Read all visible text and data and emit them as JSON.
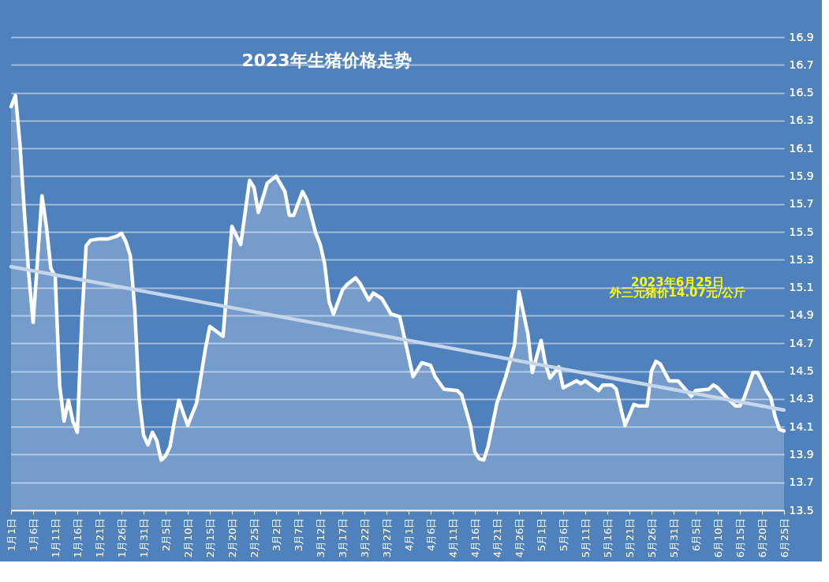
{
  "chart_data": {
    "type": "line",
    "title": "2023年生猪价格走势",
    "annotations": [
      "2023年6月25日",
      "外三元猪价14.07元/公斤"
    ],
    "xlim": [
      "2023-01-01",
      "2023-06-25"
    ],
    "xticks": [
      {
        "value": "2023-01-01",
        "label": "1月1日"
      },
      {
        "value": "2023-01-06",
        "label": "1月6日"
      },
      {
        "value": "2023-01-11",
        "label": "1月11日"
      },
      {
        "value": "2023-01-16",
        "label": "1月16日"
      },
      {
        "value": "2023-01-21",
        "label": "1月21日"
      },
      {
        "value": "2023-01-26",
        "label": "1月26日"
      },
      {
        "value": "2023-01-31",
        "label": "1月31日"
      },
      {
        "value": "2023-02-05",
        "label": "2月5日"
      },
      {
        "value": "2023-02-10",
        "label": "2月10日"
      },
      {
        "value": "2023-02-15",
        "label": "2月15日"
      },
      {
        "value": "2023-02-20",
        "label": "2月20日"
      },
      {
        "value": "2023-02-25",
        "label": "2月25日"
      },
      {
        "value": "2023-03-02",
        "label": "3月2日"
      },
      {
        "value": "2023-03-07",
        "label": "3月7日"
      },
      {
        "value": "2023-03-12",
        "label": "3月12日"
      },
      {
        "value": "2023-03-17",
        "label": "3月17日"
      },
      {
        "value": "2023-03-22",
        "label": "3月22日"
      },
      {
        "value": "2023-03-27",
        "label": "3月27日"
      },
      {
        "value": "2023-04-01",
        "label": "4月1日"
      },
      {
        "value": "2023-04-06",
        "label": "4月6日"
      },
      {
        "value": "2023-04-11",
        "label": "4月11日"
      },
      {
        "value": "2023-04-16",
        "label": "4月16日"
      },
      {
        "value": "2023-04-21",
        "label": "4月21日"
      },
      {
        "value": "2023-04-26",
        "label": "4月26日"
      },
      {
        "value": "2023-05-01",
        "label": "5月1日"
      },
      {
        "value": "2023-05-06",
        "label": "5月6日"
      },
      {
        "value": "2023-05-11",
        "label": "5月11日"
      },
      {
        "value": "2023-05-16",
        "label": "5月16日"
      },
      {
        "value": "2023-05-21",
        "label": "5月21日"
      },
      {
        "value": "2023-05-26",
        "label": "5月26日"
      },
      {
        "value": "2023-05-31",
        "label": "5月31日"
      },
      {
        "value": "2023-06-05",
        "label": "6月5日"
      },
      {
        "value": "2023-06-10",
        "label": "6月10日"
      },
      {
        "value": "2023-06-15",
        "label": "6月15日"
      },
      {
        "value": "2023-06-20",
        "label": "6月20日"
      },
      {
        "value": "2023-06-25",
        "label": "6月25日"
      }
    ],
    "ylim": [
      13.5,
      16.9
    ],
    "yticks": [
      13.5,
      13.7,
      13.9,
      14.1,
      14.3,
      14.5,
      14.7,
      14.9,
      15.1,
      15.3,
      15.5,
      15.7,
      15.9,
      16.1,
      16.3,
      16.5,
      16.7,
      16.9
    ],
    "grid": "y",
    "marker": "none",
    "line_style": "solid",
    "series": [
      {
        "type": "area",
        "color": "#ffffff",
        "x": [
          "2023-01-01",
          "2023-01-02",
          "2023-01-03",
          "2023-01-04",
          "2023-01-05",
          "2023-01-06",
          "2023-01-07",
          "2023-01-08",
          "2023-01-09",
          "2023-01-10",
          "2023-01-11",
          "2023-01-12",
          "2023-01-13",
          "2023-01-14",
          "2023-01-15",
          "2023-01-16",
          "2023-01-17",
          "2023-01-18",
          "2023-01-19",
          "2023-01-21",
          "2023-01-23",
          "2023-01-25",
          "2023-01-26",
          "2023-01-27",
          "2023-01-28",
          "2023-01-29",
          "2023-01-30",
          "2023-01-31",
          "2023-02-01",
          "2023-02-02",
          "2023-02-03",
          "2023-02-04",
          "2023-02-05",
          "2023-02-06",
          "2023-02-07",
          "2023-02-08",
          "2023-02-09",
          "2023-02-10",
          "2023-02-12",
          "2023-02-14",
          "2023-02-15",
          "2023-02-18",
          "2023-02-20",
          "2023-02-22",
          "2023-02-24",
          "2023-02-25",
          "2023-02-26",
          "2023-02-28",
          "2023-03-02",
          "2023-03-04",
          "2023-03-05",
          "2023-03-06",
          "2023-03-08",
          "2023-03-09",
          "2023-03-11",
          "2023-03-12",
          "2023-03-13",
          "2023-03-14",
          "2023-03-15",
          "2023-03-17",
          "2023-03-18",
          "2023-03-20",
          "2023-03-21",
          "2023-03-23",
          "2023-03-24",
          "2023-03-26",
          "2023-03-28",
          "2023-03-30",
          "2023-03-31",
          "2023-04-02",
          "2023-04-04",
          "2023-04-06",
          "2023-04-07",
          "2023-04-09",
          "2023-04-12",
          "2023-04-13",
          "2023-04-15",
          "2023-04-16",
          "2023-04-17",
          "2023-04-18",
          "2023-04-19",
          "2023-04-21",
          "2023-04-23",
          "2023-04-25",
          "2023-04-26",
          "2023-04-28",
          "2023-04-29",
          "2023-05-01",
          "2023-05-02",
          "2023-05-03",
          "2023-05-05",
          "2023-05-06",
          "2023-05-09",
          "2023-05-10",
          "2023-05-11",
          "2023-05-14",
          "2023-05-15",
          "2023-05-17",
          "2023-05-18",
          "2023-05-20",
          "2023-05-22",
          "2023-05-23",
          "2023-05-25",
          "2023-05-26",
          "2023-05-27",
          "2023-05-28",
          "2023-05-30",
          "2023-06-01",
          "2023-06-04",
          "2023-06-05",
          "2023-06-08",
          "2023-06-09",
          "2023-06-10",
          "2023-06-12",
          "2023-06-14",
          "2023-06-15",
          "2023-06-16",
          "2023-06-18",
          "2023-06-19",
          "2023-06-20",
          "2023-06-21",
          "2023-06-22",
          "2023-06-23",
          "2023-06-24",
          "2023-06-25"
        ],
        "values": [
          16.4,
          16.48,
          16.14,
          15.65,
          15.2,
          14.85,
          15.3,
          15.76,
          15.54,
          15.24,
          15.18,
          14.4,
          14.14,
          14.29,
          14.14,
          14.06,
          14.85,
          15.4,
          15.44,
          15.45,
          15.45,
          15.47,
          15.49,
          15.43,
          15.33,
          14.95,
          14.3,
          14.04,
          13.97,
          14.06,
          14.0,
          13.86,
          13.89,
          13.96,
          14.14,
          14.29,
          14.2,
          14.11,
          14.27,
          14.66,
          14.82,
          14.75,
          15.54,
          15.41,
          15.87,
          15.82,
          15.64,
          15.85,
          15.9,
          15.79,
          15.62,
          15.62,
          15.79,
          15.73,
          15.49,
          15.41,
          15.27,
          15.0,
          14.91,
          15.08,
          15.12,
          15.17,
          15.13,
          15.01,
          15.06,
          15.02,
          14.91,
          14.89,
          14.75,
          14.46,
          14.56,
          14.54,
          14.46,
          14.37,
          14.36,
          14.33,
          14.11,
          13.92,
          13.87,
          13.86,
          13.96,
          14.27,
          14.46,
          14.69,
          15.07,
          14.77,
          14.49,
          14.72,
          14.55,
          14.45,
          14.53,
          14.38,
          14.43,
          14.41,
          14.43,
          14.36,
          14.4,
          14.4,
          14.37,
          14.11,
          14.26,
          14.25,
          14.25,
          14.5,
          14.57,
          14.55,
          14.43,
          14.43,
          14.32,
          14.36,
          14.37,
          14.4,
          14.38,
          14.31,
          14.25,
          14.25,
          14.31,
          14.49,
          14.49,
          14.43,
          14.36,
          14.31,
          14.17,
          14.08,
          14.07
        ]
      },
      {
        "color": "#c5d6ea",
        "x": [
          "2023-01-01",
          "2023-06-25"
        ],
        "values": [
          15.25,
          14.22
        ]
      }
    ]
  }
}
